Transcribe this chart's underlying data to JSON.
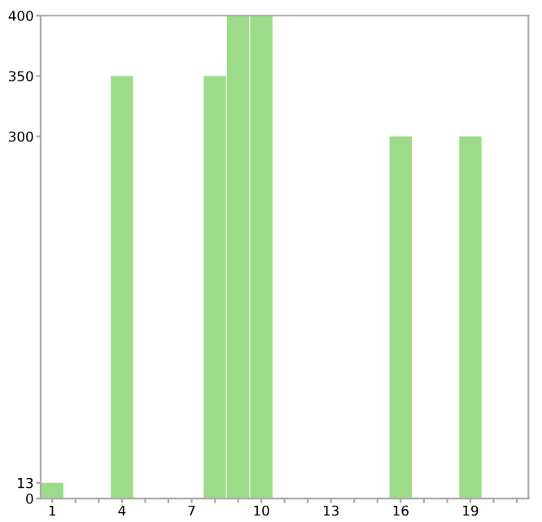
{
  "chart_data": {
    "type": "bar",
    "categories": [
      "1",
      null,
      null,
      "4",
      null,
      null,
      "7",
      null,
      null,
      "10",
      null,
      null,
      "13",
      null,
      null,
      "16",
      null,
      null,
      "19",
      null,
      null
    ],
    "values": [
      13,
      0,
      0,
      350,
      0,
      0,
      0,
      350,
      400,
      400,
      0,
      0,
      0,
      0,
      0,
      300,
      0,
      0,
      300,
      0,
      0
    ],
    "color": "#9cdc88",
    "ylim": [
      0,
      400
    ],
    "yticks": [
      0,
      13,
      300,
      350,
      400
    ],
    "grid": false
  }
}
